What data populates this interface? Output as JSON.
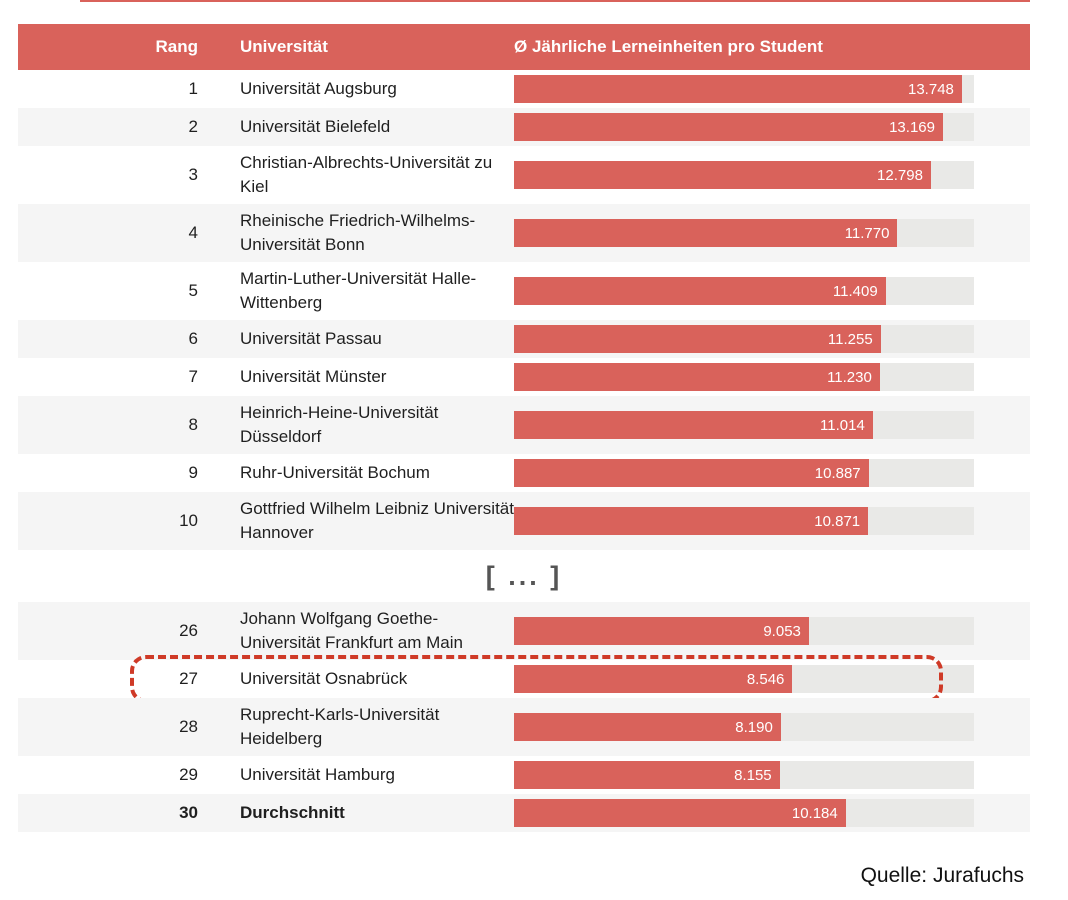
{
  "header": {
    "rank": "Rang",
    "university": "Universität",
    "value": "Ø Jährliche Lerneinheiten pro Student"
  },
  "separator_label": "[ ... ]",
  "source_label": "Quelle: Jurafuchs",
  "colors": {
    "accent": "#d9625b",
    "highlight_border": "#cf3a27",
    "row_alt": "#f5f5f5",
    "bar_track": "#e9e9e7",
    "bar_value_text": "#ffffff"
  },
  "scale_max": 14120,
  "top_rows": [
    {
      "rank": "1",
      "name": "Universität Augsburg",
      "value": 13748,
      "value_label": "13.748"
    },
    {
      "rank": "2",
      "name": "Universität Bielefeld",
      "value": 13169,
      "value_label": "13.169"
    },
    {
      "rank": "3",
      "name": "Christian-Albrechts-Universität zu Kiel",
      "value": 12798,
      "value_label": "12.798"
    },
    {
      "rank": "4",
      "name": "Rheinische Friedrich-Wilhelms-Universität Bonn",
      "value": 11770,
      "value_label": "11.770"
    },
    {
      "rank": "5",
      "name": "Martin-Luther-Universität Halle-Wittenberg",
      "value": 11409,
      "value_label": "11.409"
    },
    {
      "rank": "6",
      "name": "Universität Passau",
      "value": 11255,
      "value_label": "11.255"
    },
    {
      "rank": "7",
      "name": "Universität Münster",
      "value": 11230,
      "value_label": "11.230"
    },
    {
      "rank": "8",
      "name": "Heinrich-Heine-Universität Düsseldorf",
      "value": 11014,
      "value_label": "11.014"
    },
    {
      "rank": "9",
      "name": "Ruhr-Universität Bochum",
      "value": 10887,
      "value_label": "10.887"
    },
    {
      "rank": "10",
      "name": "Gottfried Wilhelm Leibniz Universität Hannover",
      "value": 10871,
      "value_label": "10.871"
    }
  ],
  "bottom_rows": [
    {
      "rank": "26",
      "name": "Johann Wolfgang Goethe-Universität Frankfurt am Main",
      "value": 9053,
      "value_label": "9.053"
    },
    {
      "rank": "27",
      "name": "Universität Osnabrück",
      "value": 8546,
      "value_label": "8.546",
      "highlighted": true
    },
    {
      "rank": "28",
      "name": "Ruprecht-Karls-Universität Heidelberg",
      "value": 8190,
      "value_label": "8.190"
    },
    {
      "rank": "29",
      "name": "Universität Hamburg",
      "value": 8155,
      "value_label": "8.155"
    },
    {
      "rank": "30",
      "name": "Durchschnitt",
      "value": 10184,
      "value_label": "10.184",
      "bold": true
    }
  ],
  "chart_data": {
    "type": "bar",
    "title": "Ø Jährliche Lerneinheiten pro Student",
    "xlabel": "Ø Jährliche Lerneinheiten pro Student",
    "ylabel": "Universität (Rang)",
    "orientation": "horizontal",
    "xlim": [
      0,
      14120
    ],
    "grid": false,
    "legend": "none",
    "annotations": [
      "[ ... ]",
      "Quelle: Jurafuchs",
      "Rang 27 Universität Osnabrück hervorgehoben (gestrichelter Rahmen)"
    ],
    "categories": [
      "1 Universität Augsburg",
      "2 Universität Bielefeld",
      "3 Christian-Albrechts-Universität zu Kiel",
      "4 Rheinische Friedrich-Wilhelms-Universität Bonn",
      "5 Martin-Luther-Universität Halle-Wittenberg",
      "6 Universität Passau",
      "7 Universität Münster",
      "8 Heinrich-Heine-Universität Düsseldorf",
      "9 Ruhr-Universität Bochum",
      "10 Gottfried Wilhelm Leibniz Universität Hannover",
      "26 Johann Wolfgang Goethe-Universität Frankfurt am Main",
      "27 Universität Osnabrück",
      "28 Ruprecht-Karls-Universität Heidelberg",
      "29 Universität Hamburg",
      "30 Durchschnitt"
    ],
    "values": [
      13748,
      13169,
      12798,
      11770,
      11409,
      11255,
      11230,
      11014,
      10887,
      10871,
      9053,
      8546,
      8190,
      8155,
      10184
    ]
  }
}
